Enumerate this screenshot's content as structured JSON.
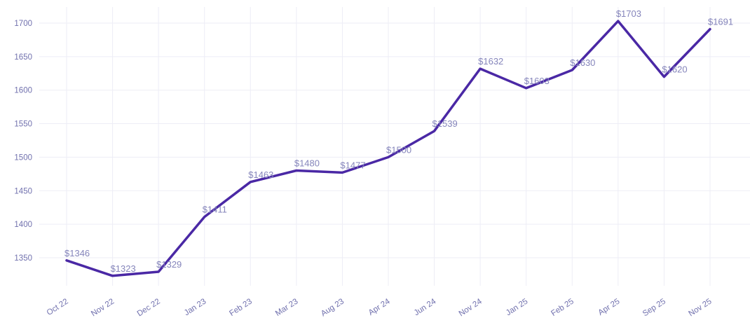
{
  "chart_data": {
    "type": "line",
    "title": "",
    "xlabel": "",
    "ylabel": "",
    "categories": [
      "Oct 22",
      "Nov 22",
      "Dec 22",
      "Jan 23",
      "Feb 23",
      "Mar 23",
      "Aug 23",
      "Apr 24",
      "Jun 24",
      "Nov 24",
      "Jan 25",
      "Feb 25",
      "Apr 25",
      "Sep 25",
      "Nov 25"
    ],
    "values": [
      1346,
      1323,
      1329,
      1411,
      1463,
      1480,
      1477,
      1500,
      1539,
      1632,
      1603,
      1630,
      1703,
      1620,
      1691
    ],
    "point_labels": [
      "$1346",
      "$1323",
      "$1329",
      "$1411",
      "$1463",
      "$1480",
      "$1477",
      "$1500",
      "$1539",
      "$1632",
      "$1603",
      "$1630",
      "$1703",
      "$1620",
      "$1691"
    ],
    "yticks": [
      1350,
      1400,
      1450,
      1500,
      1550,
      1600,
      1650,
      1700
    ],
    "ylim": [
      1323,
      1710
    ],
    "grid": "on",
    "legend": "none",
    "colors": {
      "line": "#4a28a5",
      "point_label": "#8585bb",
      "tick_label": "#7171ae",
      "gridline": "#ededf6",
      "background": "#ffffff"
    }
  }
}
